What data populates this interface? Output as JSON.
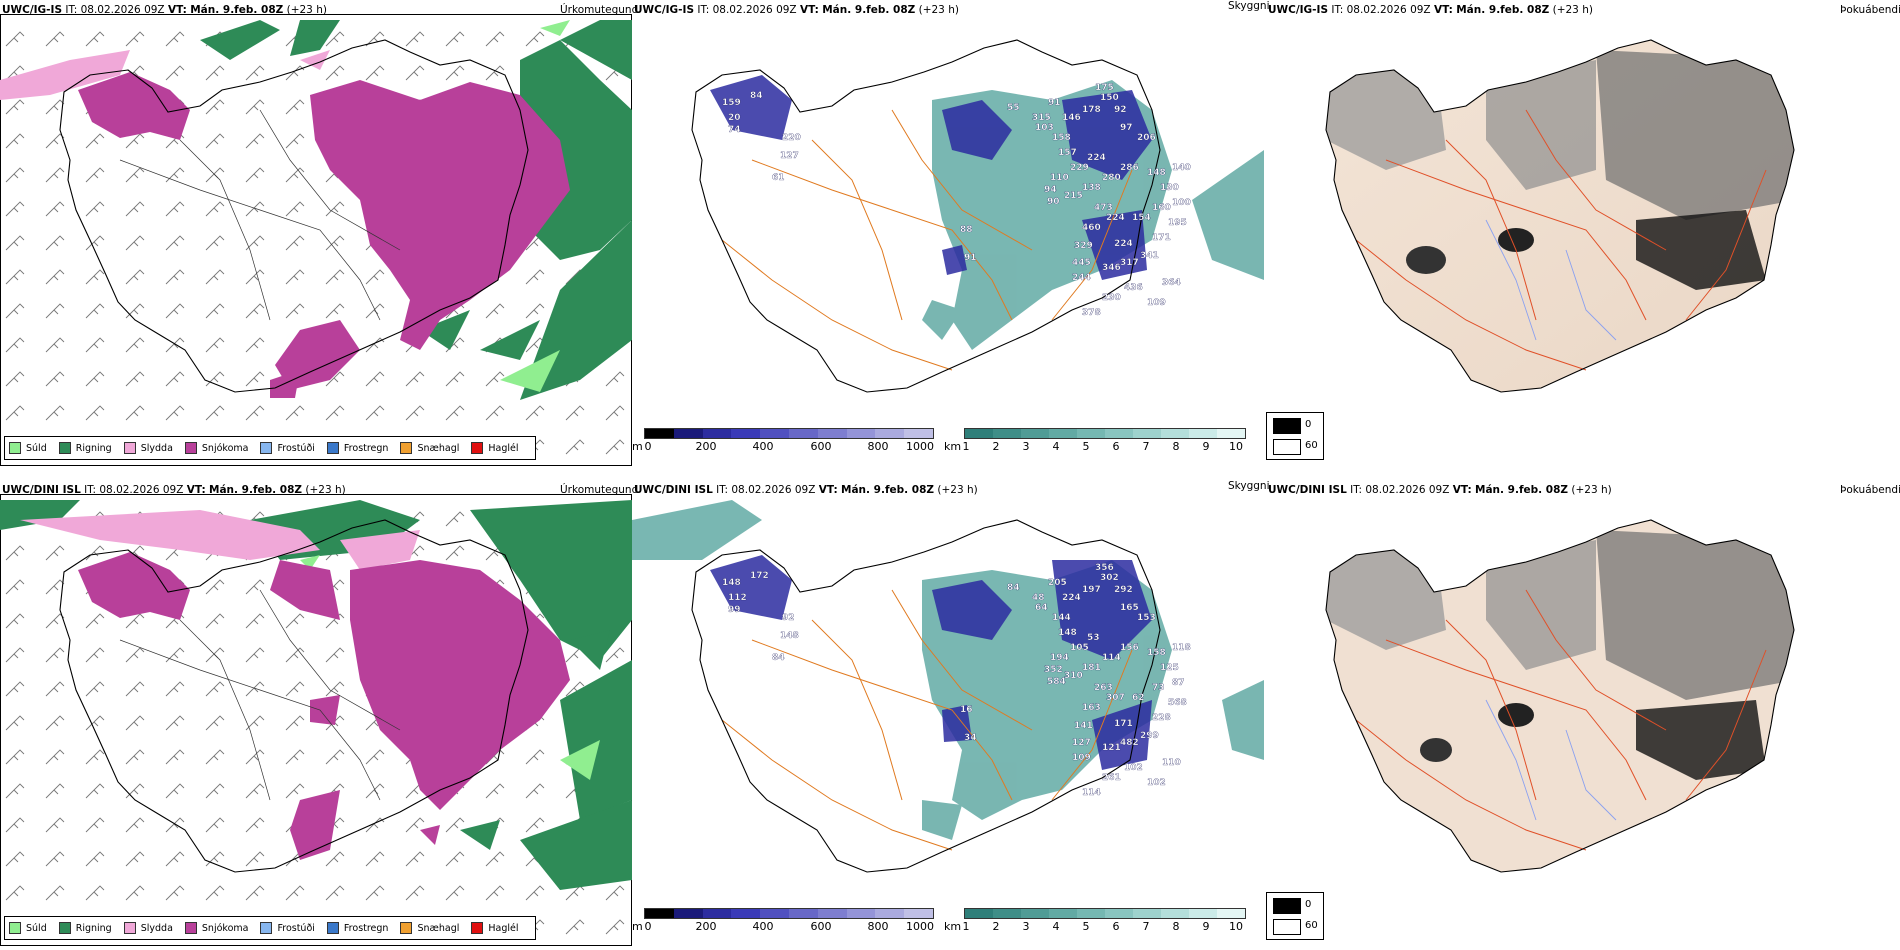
{
  "rows": [
    {
      "model": "UWC/IG-IS",
      "it_label": "IT:",
      "it_value": "08.02.2026 09Z",
      "vt_label": "VT:",
      "vt_value": "Mán. 9.feb. 08Z",
      "lead": "(+23 h)"
    },
    {
      "model": "UWC/DINI ISL",
      "it_label": "IT:",
      "it_value": "08.02.2026 09Z",
      "vt_label": "VT:",
      "vt_value": "Mán. 9.feb. 08Z",
      "lead": "(+23 h)"
    }
  ],
  "panel_titles": {
    "precip_type": "Úrkomutegund",
    "cloud": "Skyggni",
    "fog": "Þokuábendi"
  },
  "precip_legend": [
    {
      "label": "Súld",
      "color": "#90ee90"
    },
    {
      "label": "Rigning",
      "color": "#2e8b57"
    },
    {
      "label": "Slydda",
      "color": "#f0a8d8"
    },
    {
      "label": "Snjókoma",
      "color": "#b8409a"
    },
    {
      "label": "Frostúði",
      "color": "#87b6ee"
    },
    {
      "label": "Frostregn",
      "color": "#3a78c9"
    },
    {
      "label": "Snæhagl",
      "color": "#f0a030"
    },
    {
      "label": "Haglél",
      "color": "#e01010"
    }
  ],
  "colorbar_m": {
    "unit": "m",
    "ticks": [
      "0",
      "200",
      "400",
      "600",
      "800",
      "1000"
    ],
    "colors": [
      "#000000",
      "#1a1a7a",
      "#2c2ca0",
      "#3b3bb8",
      "#5050c0",
      "#6868c8",
      "#7e7ed0",
      "#9494d8",
      "#aaaadf",
      "#c0c0e6"
    ]
  },
  "colorbar_km": {
    "unit": "km",
    "ticks": [
      "1",
      "2",
      "3",
      "4",
      "5",
      "6",
      "7",
      "8",
      "9",
      "10"
    ],
    "colors": [
      "#2f7f7a",
      "#3f8e88",
      "#509c96",
      "#62aaa4",
      "#75b8b2",
      "#89c5c0",
      "#9ed2cd",
      "#b4dfdb",
      "#cbebe8",
      "#e4f6f4"
    ]
  },
  "fog_legend": [
    {
      "label": "0",
      "color": "#000000"
    },
    {
      "label": "60",
      "color": "#ffffff"
    }
  ],
  "visibility_labels": [
    [
      "159",
      "84",
      "20",
      "74",
      "220",
      "127",
      "61",
      "88",
      "91",
      "55",
      "315",
      "103",
      "158",
      "157",
      "229",
      "224",
      "280",
      "286",
      "148",
      "130",
      "140",
      "206",
      "97",
      "92",
      "150",
      "175",
      "178",
      "146",
      "91",
      "110",
      "94",
      "90",
      "215",
      "138",
      "473",
      "224",
      "460",
      "329",
      "445",
      "244",
      "346",
      "317",
      "341",
      "171",
      "195",
      "160",
      "154",
      "224",
      "230",
      "378",
      "436",
      "364",
      "100",
      "109"
    ],
    [
      "148",
      "172",
      "112",
      "99",
      "92",
      "148",
      "84",
      "16",
      "34",
      "84",
      "48",
      "64",
      "144",
      "148",
      "105",
      "53",
      "114",
      "156",
      "158",
      "125",
      "118",
      "153",
      "165",
      "292",
      "302",
      "356",
      "197",
      "224",
      "205",
      "194",
      "352",
      "584",
      "310",
      "181",
      "263",
      "307",
      "163",
      "141",
      "127",
      "109",
      "121",
      "482",
      "299",
      "228",
      "568",
      "73",
      "62",
      "171",
      "261",
      "114",
      "102",
      "110",
      "87",
      "102"
    ]
  ]
}
